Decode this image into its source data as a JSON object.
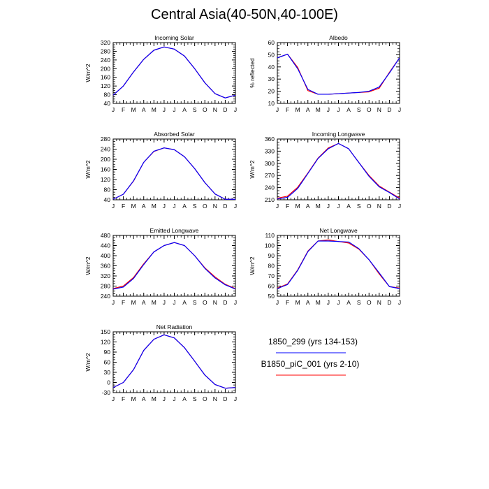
{
  "title": "Central Asia(40-50N,40-100E)",
  "months": [
    "J",
    "F",
    "M",
    "A",
    "M",
    "J",
    "J",
    "A",
    "S",
    "O",
    "N",
    "D",
    "J"
  ],
  "colors": {
    "series_a": "#0000ff",
    "series_b": "#ff0000",
    "axis": "#000000"
  },
  "legend": {
    "entries": [
      {
        "label": "1850_299 (yrs 134-153)",
        "color": "#0000ff"
      },
      {
        "label": "B1850_piC_001 (yrs 2-10)",
        "color": "#ff0000"
      }
    ]
  },
  "chart_data": [
    {
      "type": "line",
      "title": "Incoming Solar",
      "ylabel": "W/m^2",
      "ylim": [
        40,
        320
      ],
      "yticks": [
        40,
        80,
        120,
        160,
        200,
        240,
        280,
        320
      ],
      "categories": [
        "J",
        "F",
        "M",
        "A",
        "M",
        "J",
        "J",
        "A",
        "S",
        "O",
        "N",
        "D",
        "J"
      ],
      "series": [
        {
          "name": "1850_299 (yrs 134-153)",
          "color": "#0000ff",
          "values": [
            78,
            120,
            185,
            243,
            285,
            300,
            290,
            258,
            200,
            135,
            85,
            65,
            78
          ]
        },
        {
          "name": "B1850_piC_001 (yrs 2-10)",
          "color": "#ff0000",
          "values": [
            78,
            120,
            185,
            243,
            285,
            300,
            290,
            258,
            200,
            135,
            85,
            65,
            78
          ]
        }
      ]
    },
    {
      "type": "line",
      "title": "Albedo",
      "ylabel": "% reflected",
      "ylim": [
        10,
        60
      ],
      "yticks": [
        10,
        20,
        30,
        40,
        50,
        60
      ],
      "categories": [
        "J",
        "F",
        "M",
        "A",
        "M",
        "J",
        "J",
        "A",
        "S",
        "O",
        "N",
        "D",
        "J"
      ],
      "series": [
        {
          "name": "1850_299 (yrs 134-153)",
          "color": "#0000ff",
          "values": [
            47.5,
            50.5,
            38.5,
            21.5,
            17.5,
            17.5,
            18,
            18.5,
            19,
            20,
            23.5,
            35,
            47.5
          ]
        },
        {
          "name": "B1850_piC_001 (yrs 2-10)",
          "color": "#ff0000",
          "values": [
            47.5,
            50.5,
            39.5,
            20.5,
            17.5,
            17.5,
            18,
            18.5,
            19,
            19.5,
            22.5,
            35.5,
            47.5
          ]
        }
      ]
    },
    {
      "type": "line",
      "title": "Absorbed Solar",
      "ylabel": "W/m^2",
      "ylim": [
        40,
        280
      ],
      "yticks": [
        40,
        80,
        120,
        160,
        200,
        240,
        280
      ],
      "categories": [
        "J",
        "F",
        "M",
        "A",
        "M",
        "J",
        "J",
        "A",
        "S",
        "O",
        "N",
        "D",
        "J"
      ],
      "series": [
        {
          "name": "1850_299 (yrs 134-153)",
          "color": "#0000ff",
          "values": [
            42,
            62,
            115,
            188,
            232,
            245,
            238,
            210,
            163,
            108,
            63,
            42,
            42
          ]
        },
        {
          "name": "B1850_piC_001 (yrs 2-10)",
          "color": "#ff0000",
          "values": [
            42,
            62,
            114,
            188,
            231,
            245,
            238,
            210,
            163,
            108,
            63,
            42,
            42
          ]
        }
      ]
    },
    {
      "type": "line",
      "title": "Incoming Longwave",
      "ylabel": "W/m^2",
      "ylim": [
        210,
        360
      ],
      "yticks": [
        210,
        240,
        270,
        300,
        330,
        360
      ],
      "categories": [
        "J",
        "F",
        "M",
        "A",
        "M",
        "J",
        "J",
        "A",
        "S",
        "O",
        "N",
        "D",
        "J"
      ],
      "series": [
        {
          "name": "1850_299 (yrs 134-153)",
          "color": "#0000ff",
          "values": [
            212,
            216,
            238,
            275,
            312,
            336,
            349,
            336,
            302,
            268,
            242,
            228,
            212
          ]
        },
        {
          "name": "B1850_piC_001 (yrs 2-10)",
          "color": "#ff0000",
          "values": [
            214,
            219,
            241,
            276,
            313,
            338,
            349,
            336,
            302,
            270,
            244,
            229,
            214
          ]
        }
      ]
    },
    {
      "type": "line",
      "title": "Emitted Longwave",
      "ylabel": "W/m^2",
      "ylim": [
        240,
        480
      ],
      "yticks": [
        240,
        280,
        320,
        360,
        400,
        440,
        480
      ],
      "categories": [
        "J",
        "F",
        "M",
        "A",
        "M",
        "J",
        "J",
        "A",
        "S",
        "O",
        "N",
        "D",
        "J"
      ],
      "series": [
        {
          "name": "1850_299 (yrs 134-153)",
          "color": "#0000ff",
          "values": [
            268,
            276,
            310,
            365,
            415,
            440,
            452,
            440,
            400,
            350,
            312,
            285,
            268
          ]
        },
        {
          "name": "B1850_piC_001 (yrs 2-10)",
          "color": "#ff0000",
          "values": [
            270,
            280,
            314,
            368,
            415,
            440,
            452,
            440,
            400,
            352,
            316,
            287,
            270
          ]
        }
      ]
    },
    {
      "type": "line",
      "title": "Net Longwave",
      "ylabel": "W/m^2",
      "ylim": [
        50,
        110
      ],
      "yticks": [
        50,
        60,
        70,
        80,
        90,
        100,
        110
      ],
      "categories": [
        "J",
        "F",
        "M",
        "A",
        "M",
        "J",
        "J",
        "A",
        "S",
        "O",
        "N",
        "D",
        "J"
      ],
      "series": [
        {
          "name": "1850_299 (yrs 134-153)",
          "color": "#0000ff",
          "values": [
            57.5,
            61.5,
            75.5,
            94,
            104.5,
            104.5,
            104,
            103.5,
            97,
            86,
            73,
            59.5,
            57.5
          ]
        },
        {
          "name": "B1850_piC_001 (yrs 2-10)",
          "color": "#ff0000",
          "values": [
            58,
            62,
            76,
            94.5,
            104.5,
            105.5,
            104,
            102.5,
            96.5,
            86,
            72,
            59.5,
            58
          ]
        }
      ]
    },
    {
      "type": "line",
      "title": "Net Radiation",
      "ylabel": "W/m^2",
      "ylim": [
        -30,
        150
      ],
      "yticks": [
        -30,
        0,
        30,
        60,
        90,
        120,
        150
      ],
      "categories": [
        "J",
        "F",
        "M",
        "A",
        "M",
        "J",
        "J",
        "A",
        "S",
        "O",
        "N",
        "D",
        "J"
      ],
      "series": [
        {
          "name": "1850_299 (yrs 134-153)",
          "color": "#0000ff",
          "values": [
            -15,
            0,
            38,
            95,
            128,
            141,
            132,
            103,
            63,
            22,
            -6,
            -17,
            -15
          ]
        },
        {
          "name": "B1850_piC_001 (yrs 2-10)",
          "color": "#ff0000",
          "values": [
            -15,
            0,
            38,
            95,
            128,
            141,
            132,
            103,
            63,
            22,
            -6,
            -17,
            -15
          ]
        }
      ]
    }
  ]
}
